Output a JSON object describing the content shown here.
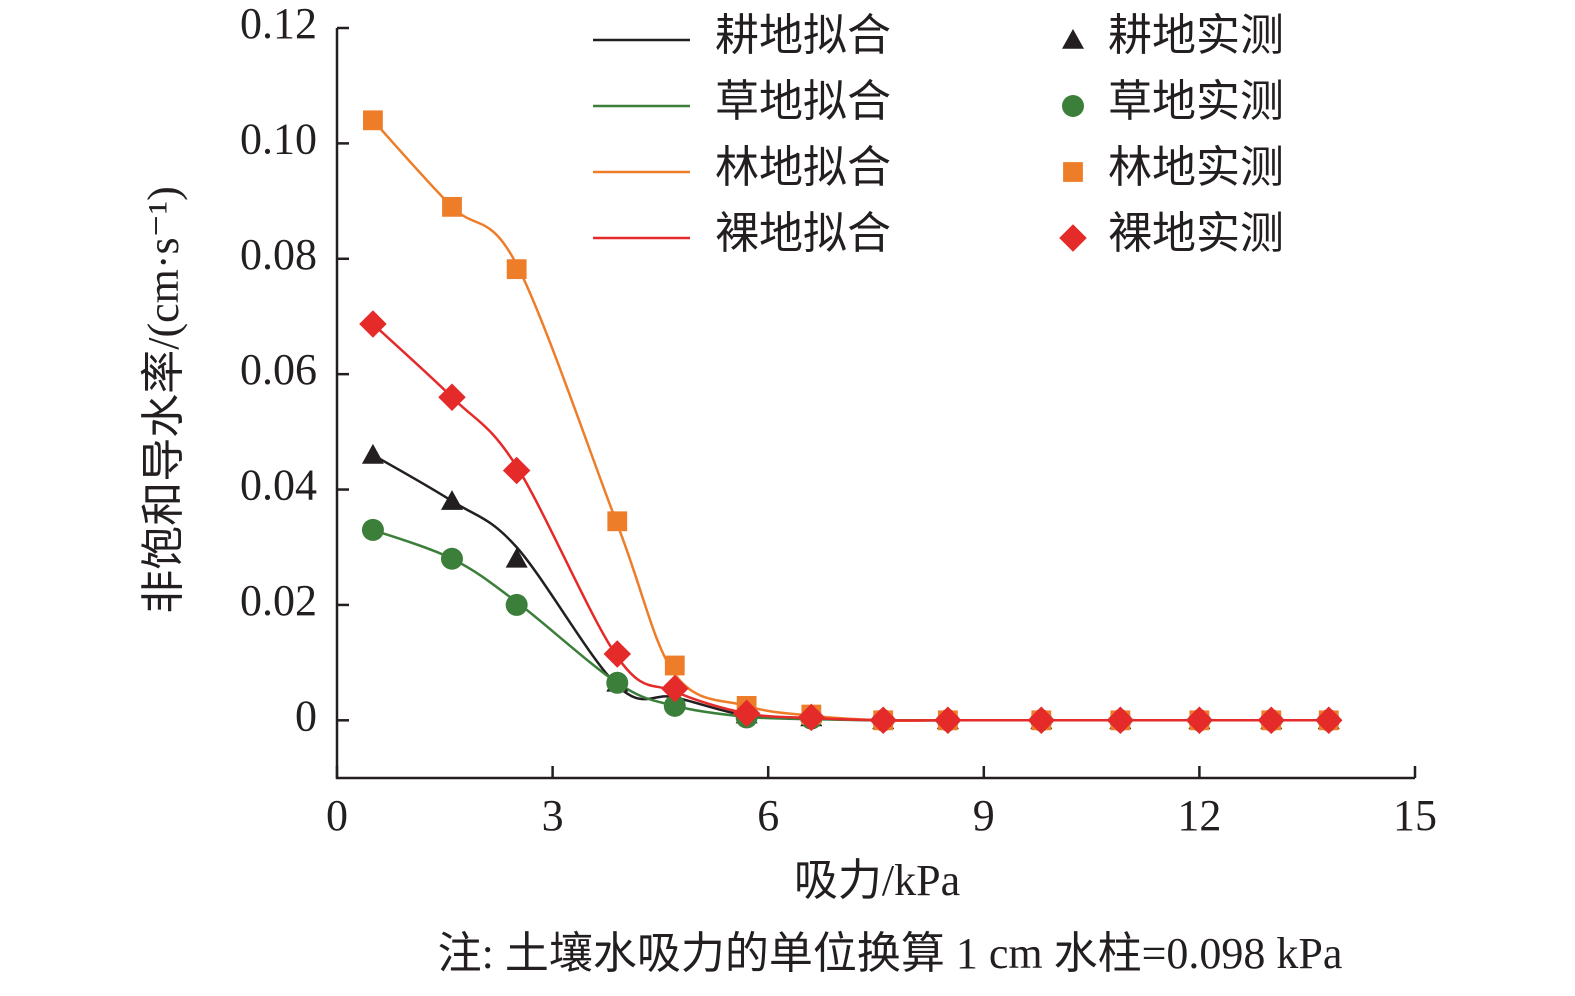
{
  "chart_data": {
    "type": "scatter_fit",
    "x_label": "吸力/kPa",
    "y_label": "非饱和导水率/(cm·s⁻¹)",
    "note": "注: 土壤水吸力的单位换算 1 cm 水柱=0.098 kPa",
    "x": [
      0.5,
      1.6,
      2.5,
      3.9,
      4.7,
      5.7,
      6.6,
      7.6,
      8.5,
      9.8,
      10.9,
      12.0,
      13.0,
      13.8
    ],
    "xlim": [
      0,
      15
    ],
    "xticks": [
      0,
      3,
      6,
      9,
      12,
      15
    ],
    "ylim": [
      -0.01,
      0.12
    ],
    "yticks": [
      0,
      0.02,
      0.04,
      0.06,
      0.08,
      {
        "value": 0.1,
        "label": "0.10"
      },
      0.12
    ],
    "series": [
      {
        "name": "耕地拟合",
        "kind": "line",
        "color": "#231f20",
        "values": [
          0.046,
          0.038,
          0.03,
          0.006,
          0.004,
          0.0008,
          0.0003,
          0,
          0,
          0,
          0,
          0,
          0,
          0
        ]
      },
      {
        "name": "草地拟合",
        "kind": "line",
        "color": "#3c7f3a",
        "values": [
          0.033,
          0.028,
          0.0205,
          0.0065,
          0.0025,
          0.0006,
          0.0002,
          0,
          0,
          0,
          0,
          0,
          0,
          0
        ]
      },
      {
        "name": "林地拟合",
        "kind": "line",
        "color": "#ee7d2a",
        "values": [
          0.104,
          0.089,
          0.079,
          0.034,
          0.008,
          0.0025,
          0.0008,
          0,
          0,
          0,
          0,
          0,
          0,
          0
        ]
      },
      {
        "name": "裸地拟合",
        "kind": "line",
        "color": "#e52a2a",
        "values": [
          0.0687,
          0.056,
          0.044,
          0.011,
          0.005,
          0.0012,
          0.0004,
          0,
          0,
          0,
          0,
          0,
          0,
          0
        ]
      },
      {
        "name": "耕地实测",
        "kind": "marker",
        "marker": "triangle",
        "color": "#231f20",
        "values": [
          0.046,
          0.038,
          0.028,
          0.0065,
          0.004,
          0.001,
          0.0005,
          0,
          0,
          0,
          0,
          0,
          0,
          0
        ]
      },
      {
        "name": "草地实测",
        "kind": "marker",
        "marker": "circle",
        "color": "#3c7f3a",
        "values": [
          0.033,
          0.028,
          0.02,
          0.0065,
          0.0025,
          0.0005,
          0.0003,
          0,
          0,
          0,
          0,
          0,
          0,
          0
        ]
      },
      {
        "name": "林地实测",
        "kind": "marker",
        "marker": "square",
        "color": "#ee7d2a",
        "values": [
          0.104,
          0.089,
          0.0782,
          0.0345,
          0.0095,
          0.0025,
          0.001,
          0,
          0,
          0,
          0,
          0,
          0,
          0
        ]
      },
      {
        "name": "裸地实测",
        "kind": "marker",
        "marker": "diamond",
        "color": "#e52a2a",
        "values": [
          0.0687,
          0.056,
          0.0433,
          0.0115,
          0.0055,
          0.0012,
          0.0005,
          0,
          0,
          0,
          0,
          0,
          0,
          0
        ]
      }
    ]
  }
}
